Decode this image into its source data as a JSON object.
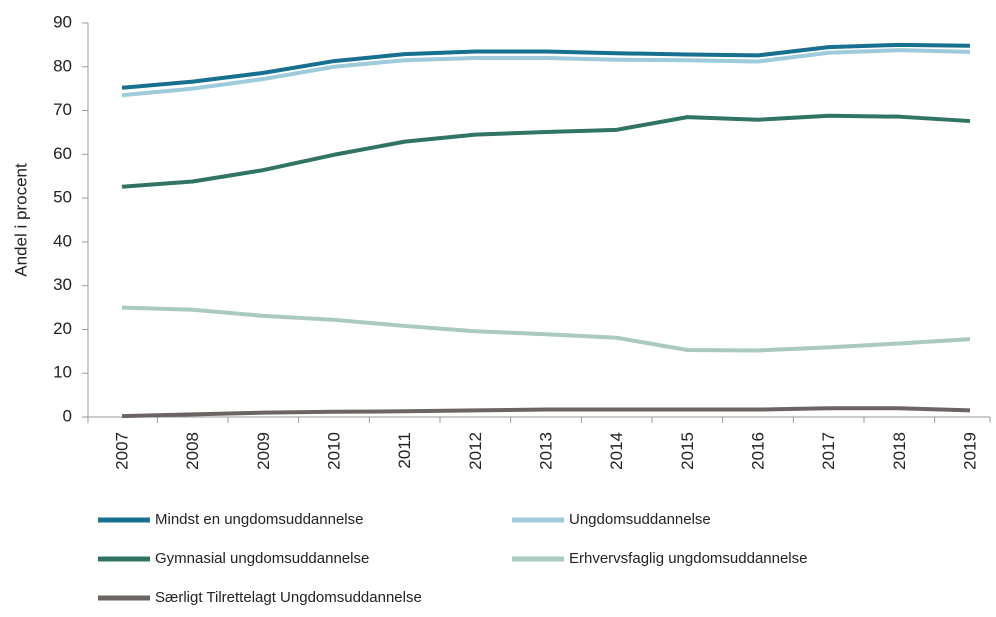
{
  "chart_data": {
    "type": "line",
    "y_label": "Andel i procent",
    "categories": [
      "2007",
      "2008",
      "2009",
      "2010",
      "2011",
      "2012",
      "2013",
      "2014",
      "2015",
      "2016",
      "2017",
      "2018",
      "2019"
    ],
    "ylim": [
      0,
      90
    ],
    "yticks": [
      0,
      10,
      20,
      30,
      40,
      50,
      60,
      70,
      80,
      90
    ],
    "grid": false,
    "series": [
      {
        "name": "Mindst en ungdomsuddannelse",
        "color": "#17708f",
        "values": [
          75.2,
          76.6,
          78.6,
          81.3,
          82.9,
          83.5,
          83.5,
          83.1,
          82.8,
          82.6,
          84.5,
          85.0,
          84.8
        ]
      },
      {
        "name": "Ungdomsuddannelse",
        "color": "#9dcbdc",
        "values": [
          73.5,
          75.0,
          77.2,
          80.0,
          81.5,
          82.0,
          82.0,
          81.6,
          81.5,
          81.2,
          83.2,
          83.8,
          83.4
        ]
      },
      {
        "name": "Gymnasial ungdomsuddannelse",
        "color": "#2f7465",
        "values": [
          52.6,
          53.8,
          56.4,
          59.9,
          62.9,
          64.5,
          65.1,
          65.6,
          68.5,
          67.9,
          68.8,
          68.6,
          67.6
        ]
      },
      {
        "name": "Erhvervsfaglig ungdomsuddannelse",
        "color": "#a9c9c1",
        "values": [
          25.0,
          24.5,
          23.1,
          22.2,
          20.8,
          19.6,
          18.9,
          18.1,
          15.3,
          15.2,
          15.9,
          16.8,
          17.8
        ]
      },
      {
        "name": "Særligt Tilrettelagt Ungdomsuddannelse",
        "color": "#6b6462",
        "values": [
          0.2,
          0.6,
          1.0,
          1.2,
          1.3,
          1.5,
          1.7,
          1.7,
          1.7,
          1.7,
          2.0,
          2.0,
          1.5
        ]
      }
    ]
  }
}
